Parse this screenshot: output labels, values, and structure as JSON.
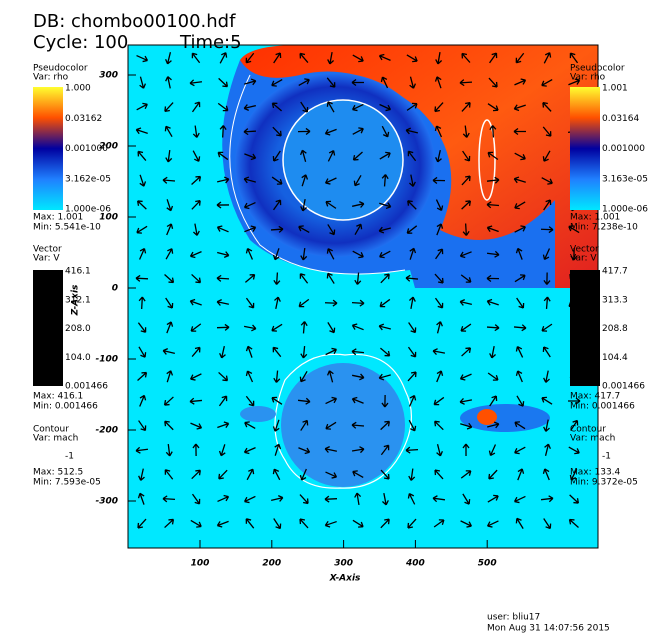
{
  "header": {
    "database": "DB: chombo00100.hdf",
    "cycle": "Cycle: 100",
    "time": "Time:5"
  },
  "legends": [
    {
      "pseudocolor": {
        "title": "Pseudocolor",
        "var": "Var: rho",
        "labels": [
          "1.000",
          "0.03162",
          "0.001000",
          "3.162e-05",
          "1.000e-06"
        ],
        "max": "Max: 1.001",
        "min": "Min: 5.541e-10"
      },
      "vector": {
        "title": "Vector",
        "var": "Var: V",
        "labels": [
          "416.1",
          "312.1",
          "208.0",
          "104.0",
          "0.001466"
        ],
        "max": "Max: 416.1",
        "min": "Min: 0.001466"
      },
      "contour": {
        "title": "Contour",
        "var": "Var: mach",
        "labels": [
          "-1"
        ],
        "max": "Max: 512.5",
        "min": "Min: 7.593e-05"
      }
    },
    {
      "pseudocolor": {
        "title": "Pseudocolor",
        "var": "Var: rho",
        "labels": [
          "1.001",
          "0.03164",
          "0.001000",
          "3.163e-05",
          "1.000e-06"
        ],
        "max": "Max: 1.001",
        "min": "Min: 7.238e-10"
      },
      "vector": {
        "title": "Vector",
        "var": "Var: V",
        "labels": [
          "417.7",
          "313.3",
          "208.8",
          "104.4",
          "0.001466"
        ],
        "max": "Max: 417.7",
        "min": "Min: 0.001466"
      },
      "contour": {
        "title": "Contour",
        "var": "Var: mach",
        "labels": [
          "-1"
        ],
        "max": "Max: 133.4",
        "min": "Min: 9.372e-05"
      }
    }
  ],
  "axes": {
    "y_label": "Z-Axis",
    "y_ticks": [
      "300",
      "200",
      "100",
      "0",
      "-100",
      "-200",
      "-300"
    ],
    "x_label": "X-Axis",
    "x_ticks": [
      "100",
      "200",
      "300",
      "400",
      "500"
    ]
  },
  "footer": {
    "user": "user: bliu17",
    "date": "Mon Aug 31 14:07:56 2015"
  }
}
